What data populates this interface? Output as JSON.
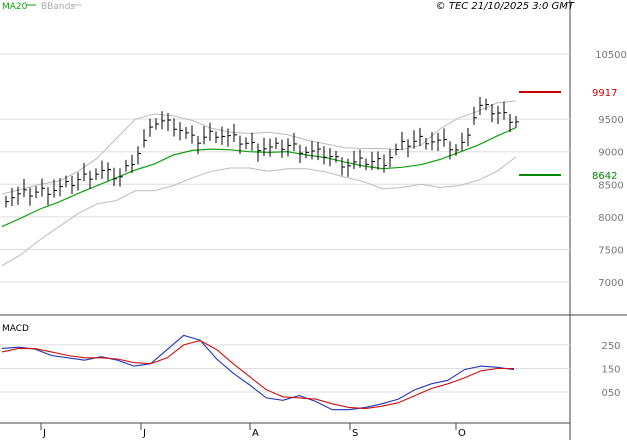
{
  "chart_data": [
    {
      "type": "ohlc",
      "panel": "price",
      "legend": [
        {
          "label": "MA20",
          "color": "#11a011"
        },
        {
          "label": "BBands",
          "color": "#bbbbbb"
        }
      ],
      "copyright": "© TEC 21/10/2025 3:0 GMT",
      "y_ticks": [
        {
          "label": "10500",
          "value": 10500
        },
        {
          "label": "9500",
          "value": 9500
        },
        {
          "label": "9000",
          "value": 9000
        },
        {
          "label": "8500",
          "value": 8500
        },
        {
          "label": "8000",
          "value": 8000
        },
        {
          "label": "7500",
          "value": 7500
        },
        {
          "label": "7000",
          "value": 7000
        }
      ],
      "ylim": [
        6600,
        10900
      ],
      "grid": true,
      "x_ticks": [
        "J",
        "J",
        "A",
        "S",
        "O"
      ],
      "series": [
        {
          "name": "MA20",
          "color": "#11a011",
          "values": [
            7850,
            7980,
            8120,
            8230,
            8360,
            8480,
            8600,
            8720,
            8810,
            8950,
            9020,
            9040,
            9030,
            9000,
            8990,
            9000,
            8950,
            8910,
            8840,
            8780,
            8740,
            8760,
            8800,
            8880,
            8990,
            9100,
            9240,
            9370
          ]
        },
        {
          "name": "BBands upper",
          "color": "#bbbbbb",
          "values": [
            8350,
            8420,
            8500,
            8550,
            8700,
            8900,
            9200,
            9500,
            9580,
            9550,
            9480,
            9360,
            9300,
            9280,
            9300,
            9260,
            9180,
            9120,
            9060,
            9050,
            9050,
            9030,
            9100,
            9350,
            9520,
            9620,
            9750,
            9780
          ]
        },
        {
          "name": "BBands lower",
          "color": "#bbbbbb",
          "values": [
            7250,
            7420,
            7650,
            7850,
            8050,
            8200,
            8250,
            8400,
            8400,
            8480,
            8600,
            8700,
            8750,
            8750,
            8700,
            8740,
            8740,
            8690,
            8610,
            8540,
            8430,
            8450,
            8500,
            8450,
            8480,
            8560,
            8700,
            8920
          ]
        },
        {
          "name": "Price",
          "color": "#000000",
          "values": [
            8300,
            8350,
            8400,
            8450,
            8600,
            8700,
            8600,
            9000,
            9500,
            9400,
            9150,
            9300,
            9200,
            9100,
            9050,
            9100,
            9000,
            8950,
            8800,
            8850,
            8850,
            9100,
            9200,
            9150,
            9000,
            9700,
            9600,
            9480
          ]
        }
      ],
      "levels": [
        {
          "label": "9917",
          "value": 9917,
          "color": "#cc0000"
        },
        {
          "label": "8642",
          "value": 8642,
          "color": "#008800"
        }
      ]
    },
    {
      "type": "line",
      "panel": "macd",
      "title": "MACD",
      "y_ticks": [
        {
          "label": "250",
          "value": 250
        },
        {
          "label": "150",
          "value": 150
        },
        {
          "label": "050",
          "value": 50
        }
      ],
      "ylim": [
        -60,
        330
      ],
      "series": [
        {
          "name": "MACD",
          "color": "#2233bb",
          "values": [
            235,
            240,
            232,
            205,
            195,
            185,
            200,
            185,
            160,
            170,
            230,
            290,
            270,
            190,
            130,
            80,
            25,
            15,
            35,
            10,
            -25,
            -25,
            -15,
            0,
            20,
            60,
            85,
            100,
            145,
            160,
            155,
            145
          ]
        },
        {
          "name": "Signal",
          "color": "#cc1111",
          "values": [
            220,
            235,
            234,
            220,
            205,
            195,
            195,
            190,
            175,
            170,
            195,
            250,
            268,
            230,
            170,
            115,
            60,
            30,
            25,
            20,
            0,
            -15,
            -20,
            -10,
            5,
            35,
            65,
            85,
            110,
            140,
            150,
            150
          ]
        }
      ]
    }
  ]
}
